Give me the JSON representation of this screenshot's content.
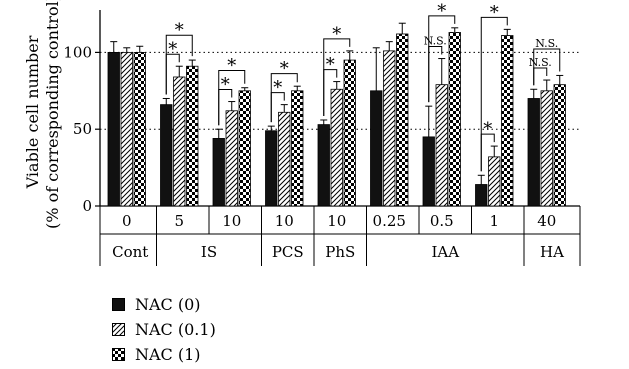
{
  "chart_data": {
    "type": "bar",
    "ylabel_line1": "Viable cell number",
    "ylabel_line2": "(% of corresponding control)",
    "ylim": [
      0,
      125
    ],
    "yticks": [
      "0",
      "50",
      "100"
    ],
    "reference_lines": [
      50,
      100
    ],
    "groups": [
      {
        "dose": "0",
        "values": [
          100,
          100,
          100
        ],
        "errors": [
          7,
          3,
          4
        ]
      },
      {
        "dose": "5",
        "values": [
          66,
          84,
          91
        ],
        "errors": [
          4,
          7,
          4
        ]
      },
      {
        "dose": "10",
        "values": [
          44,
          62,
          75
        ],
        "errors": [
          6,
          6,
          2
        ]
      },
      {
        "dose": "10",
        "values": [
          49,
          61,
          75
        ],
        "errors": [
          3,
          5,
          3
        ]
      },
      {
        "dose": "10",
        "values": [
          53,
          76,
          95
        ],
        "errors": [
          3,
          5,
          6
        ]
      },
      {
        "dose": "0.25",
        "values": [
          75,
          101,
          112
        ],
        "errors": [
          28,
          6,
          7
        ]
      },
      {
        "dose": "0.5",
        "values": [
          45,
          79,
          113
        ],
        "errors": [
          20,
          17,
          3
        ]
      },
      {
        "dose": "1",
        "values": [
          14,
          32,
          111
        ],
        "errors": [
          6,
          7,
          4
        ]
      },
      {
        "dose": "40",
        "values": [
          70,
          75,
          79
        ],
        "errors": [
          6,
          7,
          6
        ]
      }
    ],
    "compound_labels": [
      {
        "label": "Cont",
        "from": 0,
        "to": 0
      },
      {
        "label": "IS",
        "from": 1,
        "to": 2
      },
      {
        "label": "PCS",
        "from": 3,
        "to": 3
      },
      {
        "label": "PhS",
        "from": 4,
        "to": 4
      },
      {
        "label": "IAA",
        "from": 5,
        "to": 7
      },
      {
        "label": "HA",
        "from": 8,
        "to": 8
      }
    ],
    "series": [
      {
        "name": "NAC (0)",
        "pattern": "solid"
      },
      {
        "name": "NAC (0.1)",
        "pattern": "hatch"
      },
      {
        "name": "NAC (1)",
        "pattern": "checker"
      }
    ],
    "significance": [
      {
        "group": 1,
        "from": 0,
        "to": 1,
        "label": "*"
      },
      {
        "group": 1,
        "from": 0,
        "to": 2,
        "label": "*"
      },
      {
        "group": 2,
        "from": 0,
        "to": 1,
        "label": "*"
      },
      {
        "group": 2,
        "from": 0,
        "to": 2,
        "label": "*"
      },
      {
        "group": 3,
        "from": 0,
        "to": 1,
        "label": "*"
      },
      {
        "group": 3,
        "from": 0,
        "to": 2,
        "label": "*"
      },
      {
        "group": 4,
        "from": 0,
        "to": 1,
        "label": "*"
      },
      {
        "group": 4,
        "from": 0,
        "to": 2,
        "label": "*"
      },
      {
        "group": 6,
        "from": 0,
        "to": 1,
        "label": "N.S."
      },
      {
        "group": 6,
        "from": 0,
        "to": 2,
        "label": "*"
      },
      {
        "group": 7,
        "from": 0,
        "to": 1,
        "label": "*"
      },
      {
        "group": 7,
        "from": 0,
        "to": 2,
        "label": "*"
      },
      {
        "group": 8,
        "from": 0,
        "to": 1,
        "label": "N.S."
      },
      {
        "group": 8,
        "from": 0,
        "to": 2,
        "label": "N.S."
      }
    ]
  },
  "legend": {
    "items": [
      "NAC (0)",
      "NAC (0.1)",
      "NAC (1)"
    ]
  }
}
